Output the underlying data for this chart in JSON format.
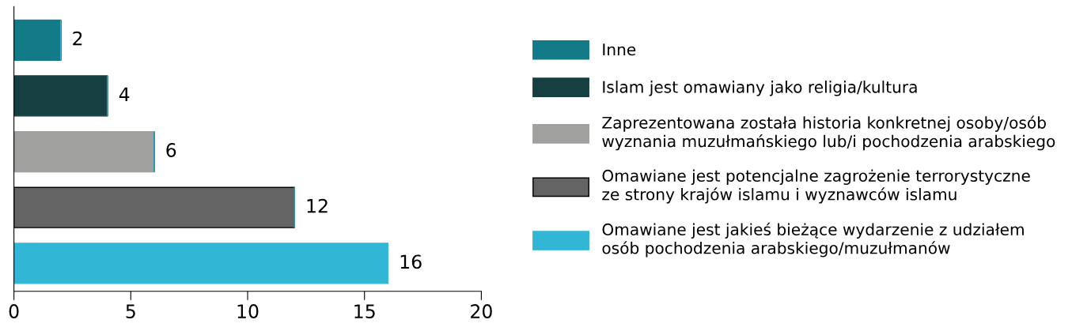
{
  "chart_data": {
    "type": "bar",
    "orientation": "horizontal",
    "stacked": true,
    "categories": [
      null,
      null,
      null,
      null,
      null
    ],
    "series": [
      {
        "name": "Inne",
        "color": "#137a87",
        "values": [
          2,
          null,
          null,
          null,
          null
        ]
      },
      {
        "name": "Islam jest omawiany jako religia/kultura",
        "color": "#163f42",
        "values": [
          null,
          4,
          null,
          null,
          null
        ]
      },
      {
        "name": "Zaprezentowana została historia konkretnej osoby/osób\nwyznania muzułmańskiego lub/i pochodzenia arabskiego",
        "color": "#a0a09f",
        "values": [
          null,
          null,
          6,
          null,
          null
        ]
      },
      {
        "name": "Omawiane jest potencjalne zagrożenie terrorystyczne\nze strony krajów islamu i wyznawców islamu",
        "color": "#646464",
        "values": [
          null,
          null,
          null,
          12,
          null
        ]
      },
      {
        "name": "Omawiane jest jakieś bieżące wydarzenie z udziałem\nosób pochodzenia arabskiego/muzułmanów",
        "color": "#31b6d6",
        "values": [
          null,
          null,
          null,
          null,
          16
        ]
      }
    ],
    "xlim": [
      0,
      20
    ],
    "xticks": [
      0,
      5,
      10,
      15,
      20
    ],
    "data_labels": true,
    "grid": false,
    "legend": "right"
  }
}
